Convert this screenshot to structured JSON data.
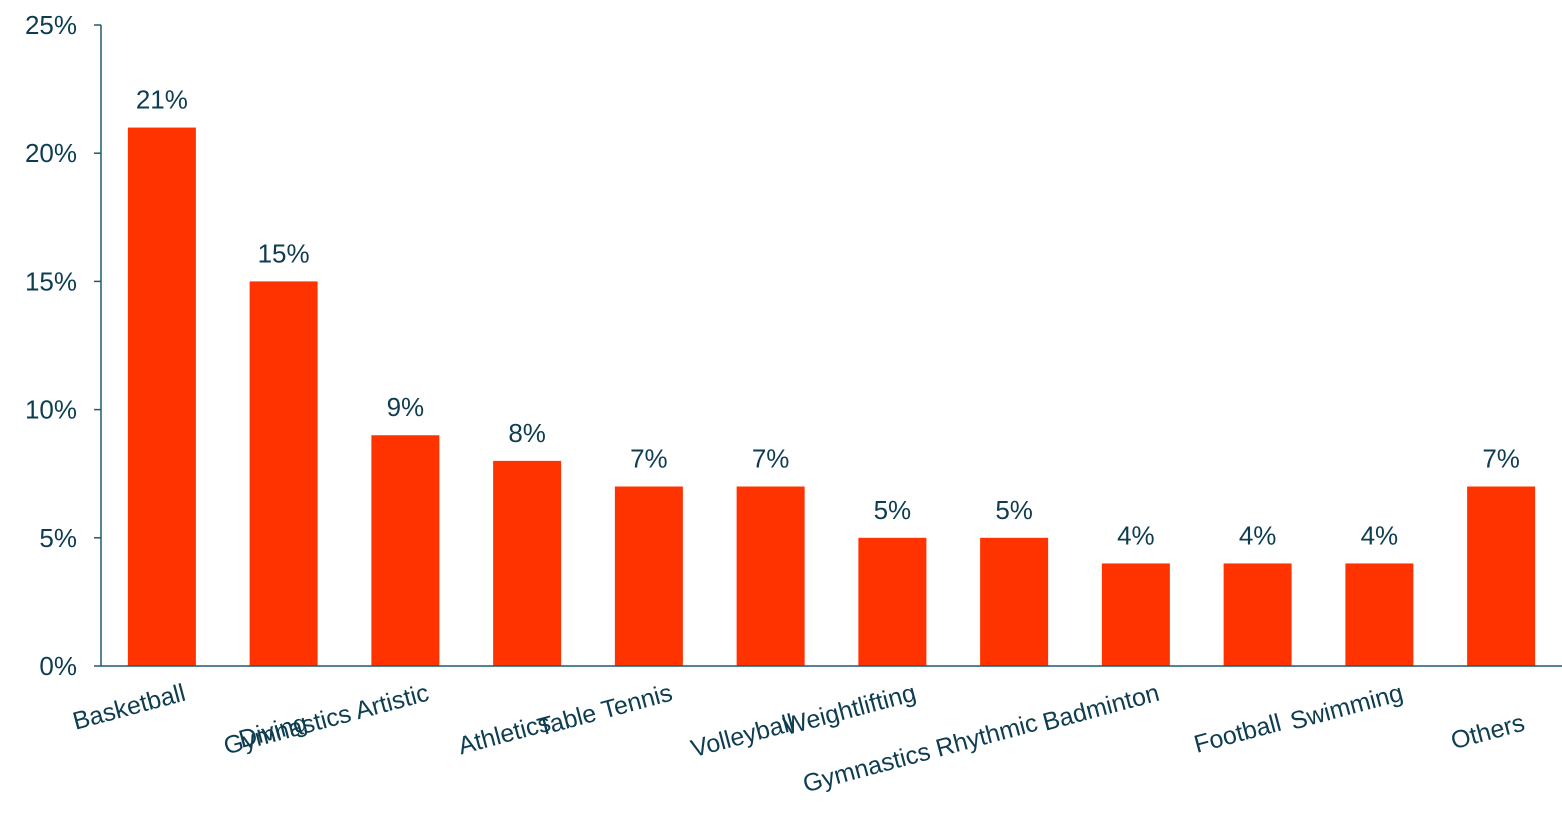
{
  "chart_data": {
    "type": "bar",
    "title": "",
    "xlabel": "",
    "ylabel": "",
    "categories": [
      "Basketball",
      "Diving",
      "Gymnastics Artistic",
      "Athletics",
      "Table Tennis",
      "Volleyball",
      "Weightlifting",
      "Gymnastics Rhythmic",
      "Badminton",
      "Football",
      "Swimming",
      "Others"
    ],
    "values": [
      21,
      15,
      9,
      8,
      7,
      7,
      5,
      5,
      4,
      4,
      4,
      7
    ],
    "data_labels": [
      "21%",
      "15%",
      "9%",
      "8%",
      "7%",
      "7%",
      "5%",
      "5%",
      "4%",
      "4%",
      "4%",
      "7%"
    ],
    "y_ticks": [
      0,
      5,
      10,
      15,
      20,
      25
    ],
    "y_tick_labels": [
      "0%",
      "5%",
      "10%",
      "15%",
      "20%",
      "25%"
    ],
    "ylim": [
      0,
      25
    ],
    "grid": false,
    "legend": "none",
    "colors": {
      "bar": "#ff3300",
      "axis": "#1f5a6e",
      "text": "#0e3d52"
    }
  }
}
